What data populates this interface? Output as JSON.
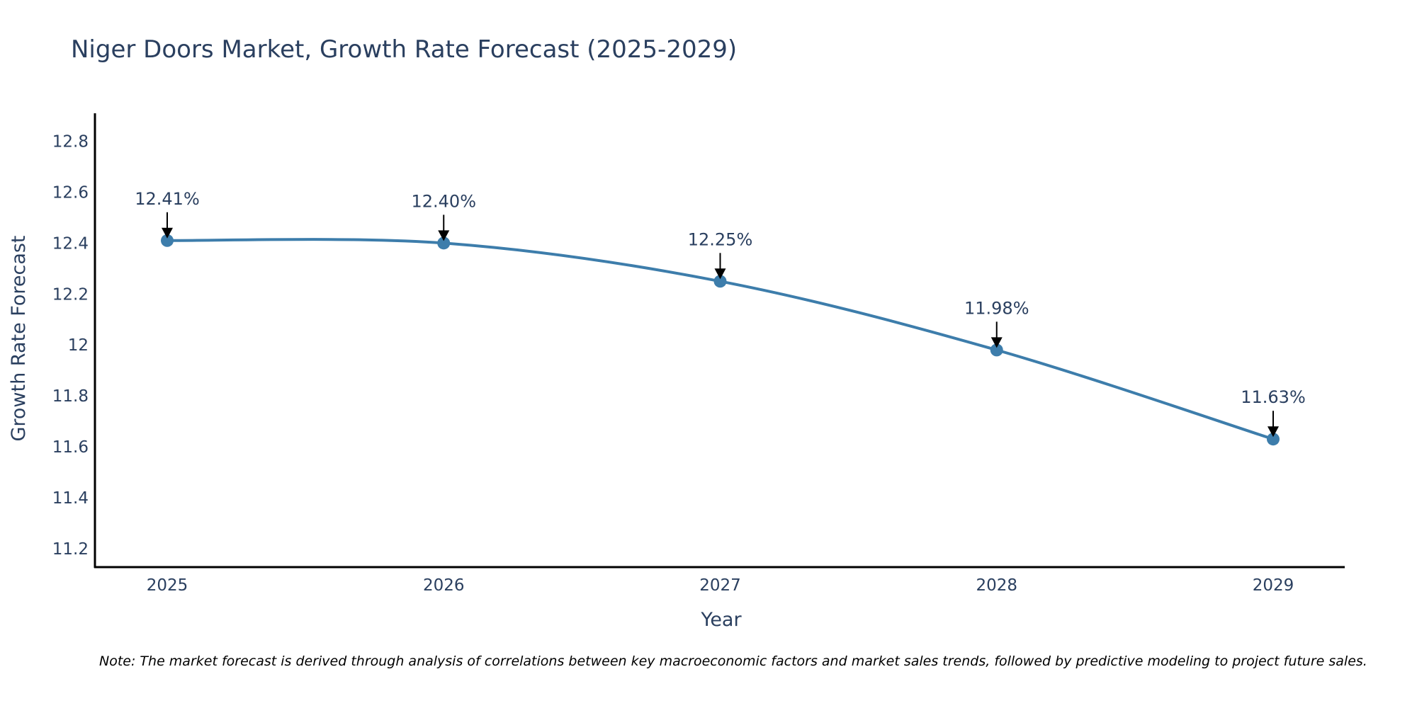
{
  "chart_data": {
    "type": "line",
    "title": "Niger Doors Market, Growth Rate Forecast (2025-2029)",
    "xlabel": "Year",
    "ylabel": "Growth Rate Forecast",
    "categories": [
      "2025",
      "2026",
      "2027",
      "2028",
      "2029"
    ],
    "series": [
      {
        "name": "Growth Rate Forecast",
        "values": [
          12.41,
          12.4,
          12.25,
          11.98,
          11.63
        ],
        "labels": [
          "12.41%",
          "12.40%",
          "12.25%",
          "11.98%",
          "11.63%"
        ],
        "color": "#3d7dab"
      }
    ],
    "ylim": [
      11.13,
      12.91
    ],
    "yticks": [
      11.2,
      11.4,
      11.6,
      11.8,
      12,
      12.2,
      12.4,
      12.6,
      12.8
    ],
    "ytick_labels": [
      "11.2",
      "11.4",
      "11.6",
      "11.8",
      "12",
      "12.2",
      "12.4",
      "12.6",
      "12.8"
    ],
    "grid": false,
    "line_shape": "spline",
    "note": "Note: The market forecast is derived through analysis of correlations between key macroeconomic factors and market sales trends, followed by predictive modeling to project future sales."
  }
}
